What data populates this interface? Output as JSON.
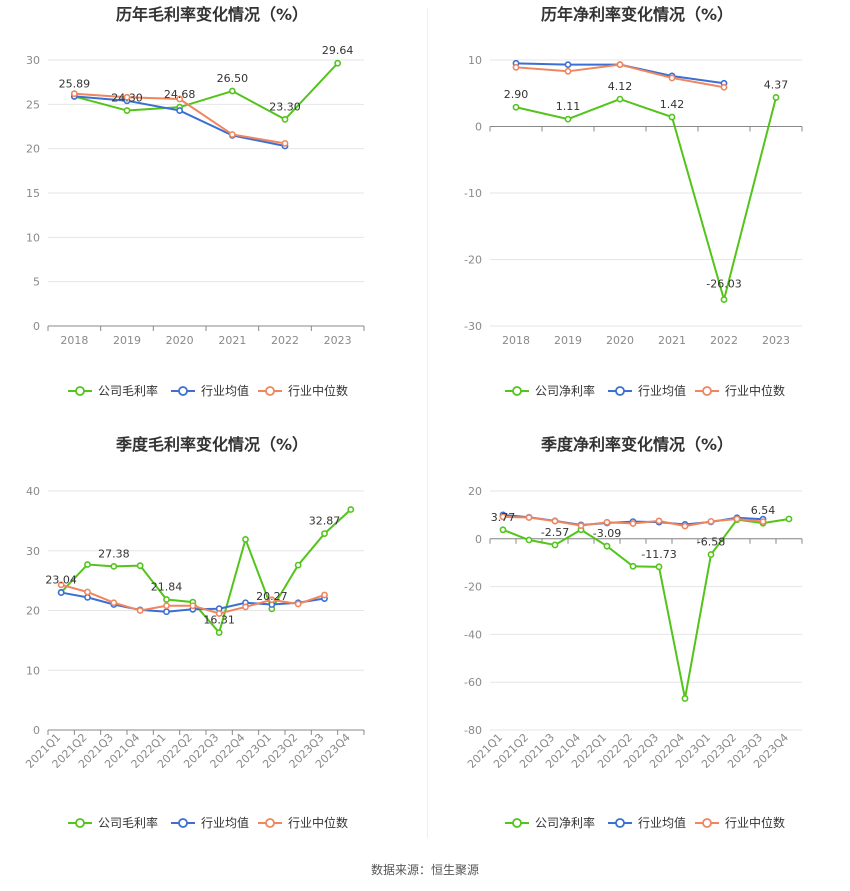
{
  "source_label": "数据来源：恒生聚源",
  "chart_data": [
    {
      "id": "annual-gross",
      "type": "line",
      "title": "历年毛利率变化情况（%）",
      "categories": [
        "2018",
        "2019",
        "2020",
        "2021",
        "2022",
        "2023"
      ],
      "ylim": [
        0,
        30
      ],
      "yticks": [
        0,
        5,
        10,
        15,
        20,
        25,
        30
      ],
      "grid": true,
      "legend_position": "bottom",
      "series": [
        {
          "name": "公司毛利率",
          "color": "#52c41a",
          "values": [
            25.89,
            24.3,
            24.68,
            26.5,
            23.3,
            29.64
          ],
          "labels": [
            "25.89",
            "24.30",
            "24.68",
            "26.50",
            "23.30",
            "29.64"
          ]
        },
        {
          "name": "行业均值",
          "color": "#3b6fd4",
          "values": [
            25.9,
            25.4,
            24.3,
            21.5,
            20.3,
            null
          ]
        },
        {
          "name": "行业中位数",
          "color": "#f0855e",
          "values": [
            26.2,
            25.8,
            25.6,
            21.6,
            20.6,
            null
          ]
        }
      ]
    },
    {
      "id": "annual-net",
      "type": "line",
      "title": "历年净利率变化情况（%）",
      "categories": [
        "2018",
        "2019",
        "2020",
        "2021",
        "2022",
        "2023"
      ],
      "ylim": [
        -30,
        10
      ],
      "yticks": [
        -30,
        -20,
        -10,
        0,
        10
      ],
      "grid": true,
      "legend_position": "bottom",
      "series": [
        {
          "name": "公司净利率",
          "color": "#52c41a",
          "values": [
            2.9,
            1.11,
            4.12,
            1.42,
            -26.03,
            4.37
          ],
          "labels": [
            "2.90",
            "1.11",
            "4.12",
            "1.42",
            "-26.03",
            "4.37"
          ]
        },
        {
          "name": "行业均值",
          "color": "#3b6fd4",
          "values": [
            9.5,
            9.3,
            9.3,
            7.6,
            6.5,
            null
          ]
        },
        {
          "name": "行业中位数",
          "color": "#f0855e",
          "values": [
            8.9,
            8.3,
            9.3,
            7.3,
            5.9,
            null
          ]
        }
      ]
    },
    {
      "id": "quarterly-gross",
      "type": "line",
      "title": "季度毛利率变化情况（%）",
      "categories": [
        "2021Q1",
        "2021Q2",
        "2021Q3",
        "2021Q4",
        "2022Q1",
        "2022Q2",
        "2022Q3",
        "2022Q4",
        "2023Q1",
        "2023Q2",
        "2023Q3",
        "2023Q4"
      ],
      "ylim": [
        0,
        40
      ],
      "yticks": [
        0,
        10,
        20,
        30,
        40
      ],
      "grid": true,
      "legend_position": "bottom",
      "series": [
        {
          "name": "公司毛利率",
          "color": "#52c41a",
          "values": [
            23.04,
            27.7,
            27.38,
            27.5,
            21.84,
            21.4,
            16.31,
            31.9,
            20.27,
            27.6,
            32.87,
            36.9
          ],
          "labels": [
            "23.04",
            "",
            "27.38",
            "",
            "21.84",
            "",
            "16.31",
            "",
            "20.27",
            "",
            "32.87",
            ""
          ]
        },
        {
          "name": "行业均值",
          "color": "#3b6fd4",
          "values": [
            23.0,
            22.2,
            21.0,
            20.1,
            19.8,
            20.2,
            20.3,
            21.3,
            21.0,
            21.3,
            22.0,
            null
          ]
        },
        {
          "name": "行业中位数",
          "color": "#f0855e",
          "values": [
            24.3,
            23.1,
            21.3,
            20.0,
            20.8,
            20.8,
            19.5,
            20.6,
            21.8,
            21.1,
            22.6,
            null
          ]
        }
      ]
    },
    {
      "id": "quarterly-net",
      "type": "line",
      "title": "季度净利率变化情况（%）",
      "categories": [
        "2021Q1",
        "2021Q2",
        "2021Q3",
        "2021Q4",
        "2022Q1",
        "2022Q2",
        "2022Q3",
        "2022Q4",
        "2023Q1",
        "2023Q2",
        "2023Q3",
        "2023Q4"
      ],
      "ylim": [
        -80,
        20
      ],
      "yticks": [
        -80,
        -60,
        -40,
        -20,
        0,
        20
      ],
      "grid": true,
      "legend_position": "bottom",
      "series": [
        {
          "name": "公司净利率",
          "color": "#52c41a",
          "values": [
            3.77,
            -0.5,
            -2.57,
            3.8,
            -3.09,
            -11.5,
            -11.73,
            -66.8,
            -6.58,
            8.0,
            6.54,
            8.3
          ],
          "labels": [
            "3.77",
            "",
            "-2.57",
            "",
            "-3.09",
            "",
            "-11.73",
            "",
            "-6.58",
            "",
            "6.54",
            ""
          ]
        },
        {
          "name": "行业均值",
          "color": "#3b6fd4",
          "values": [
            10.0,
            9.0,
            7.5,
            5.8,
            6.6,
            7.2,
            7.0,
            6.0,
            7.1,
            8.8,
            8.2,
            null
          ]
        },
        {
          "name": "行业中位数",
          "color": "#f0855e",
          "values": [
            9.2,
            8.9,
            7.4,
            5.5,
            6.9,
            6.4,
            7.5,
            5.3,
            7.3,
            8.3,
            7.2,
            null
          ]
        }
      ]
    }
  ]
}
